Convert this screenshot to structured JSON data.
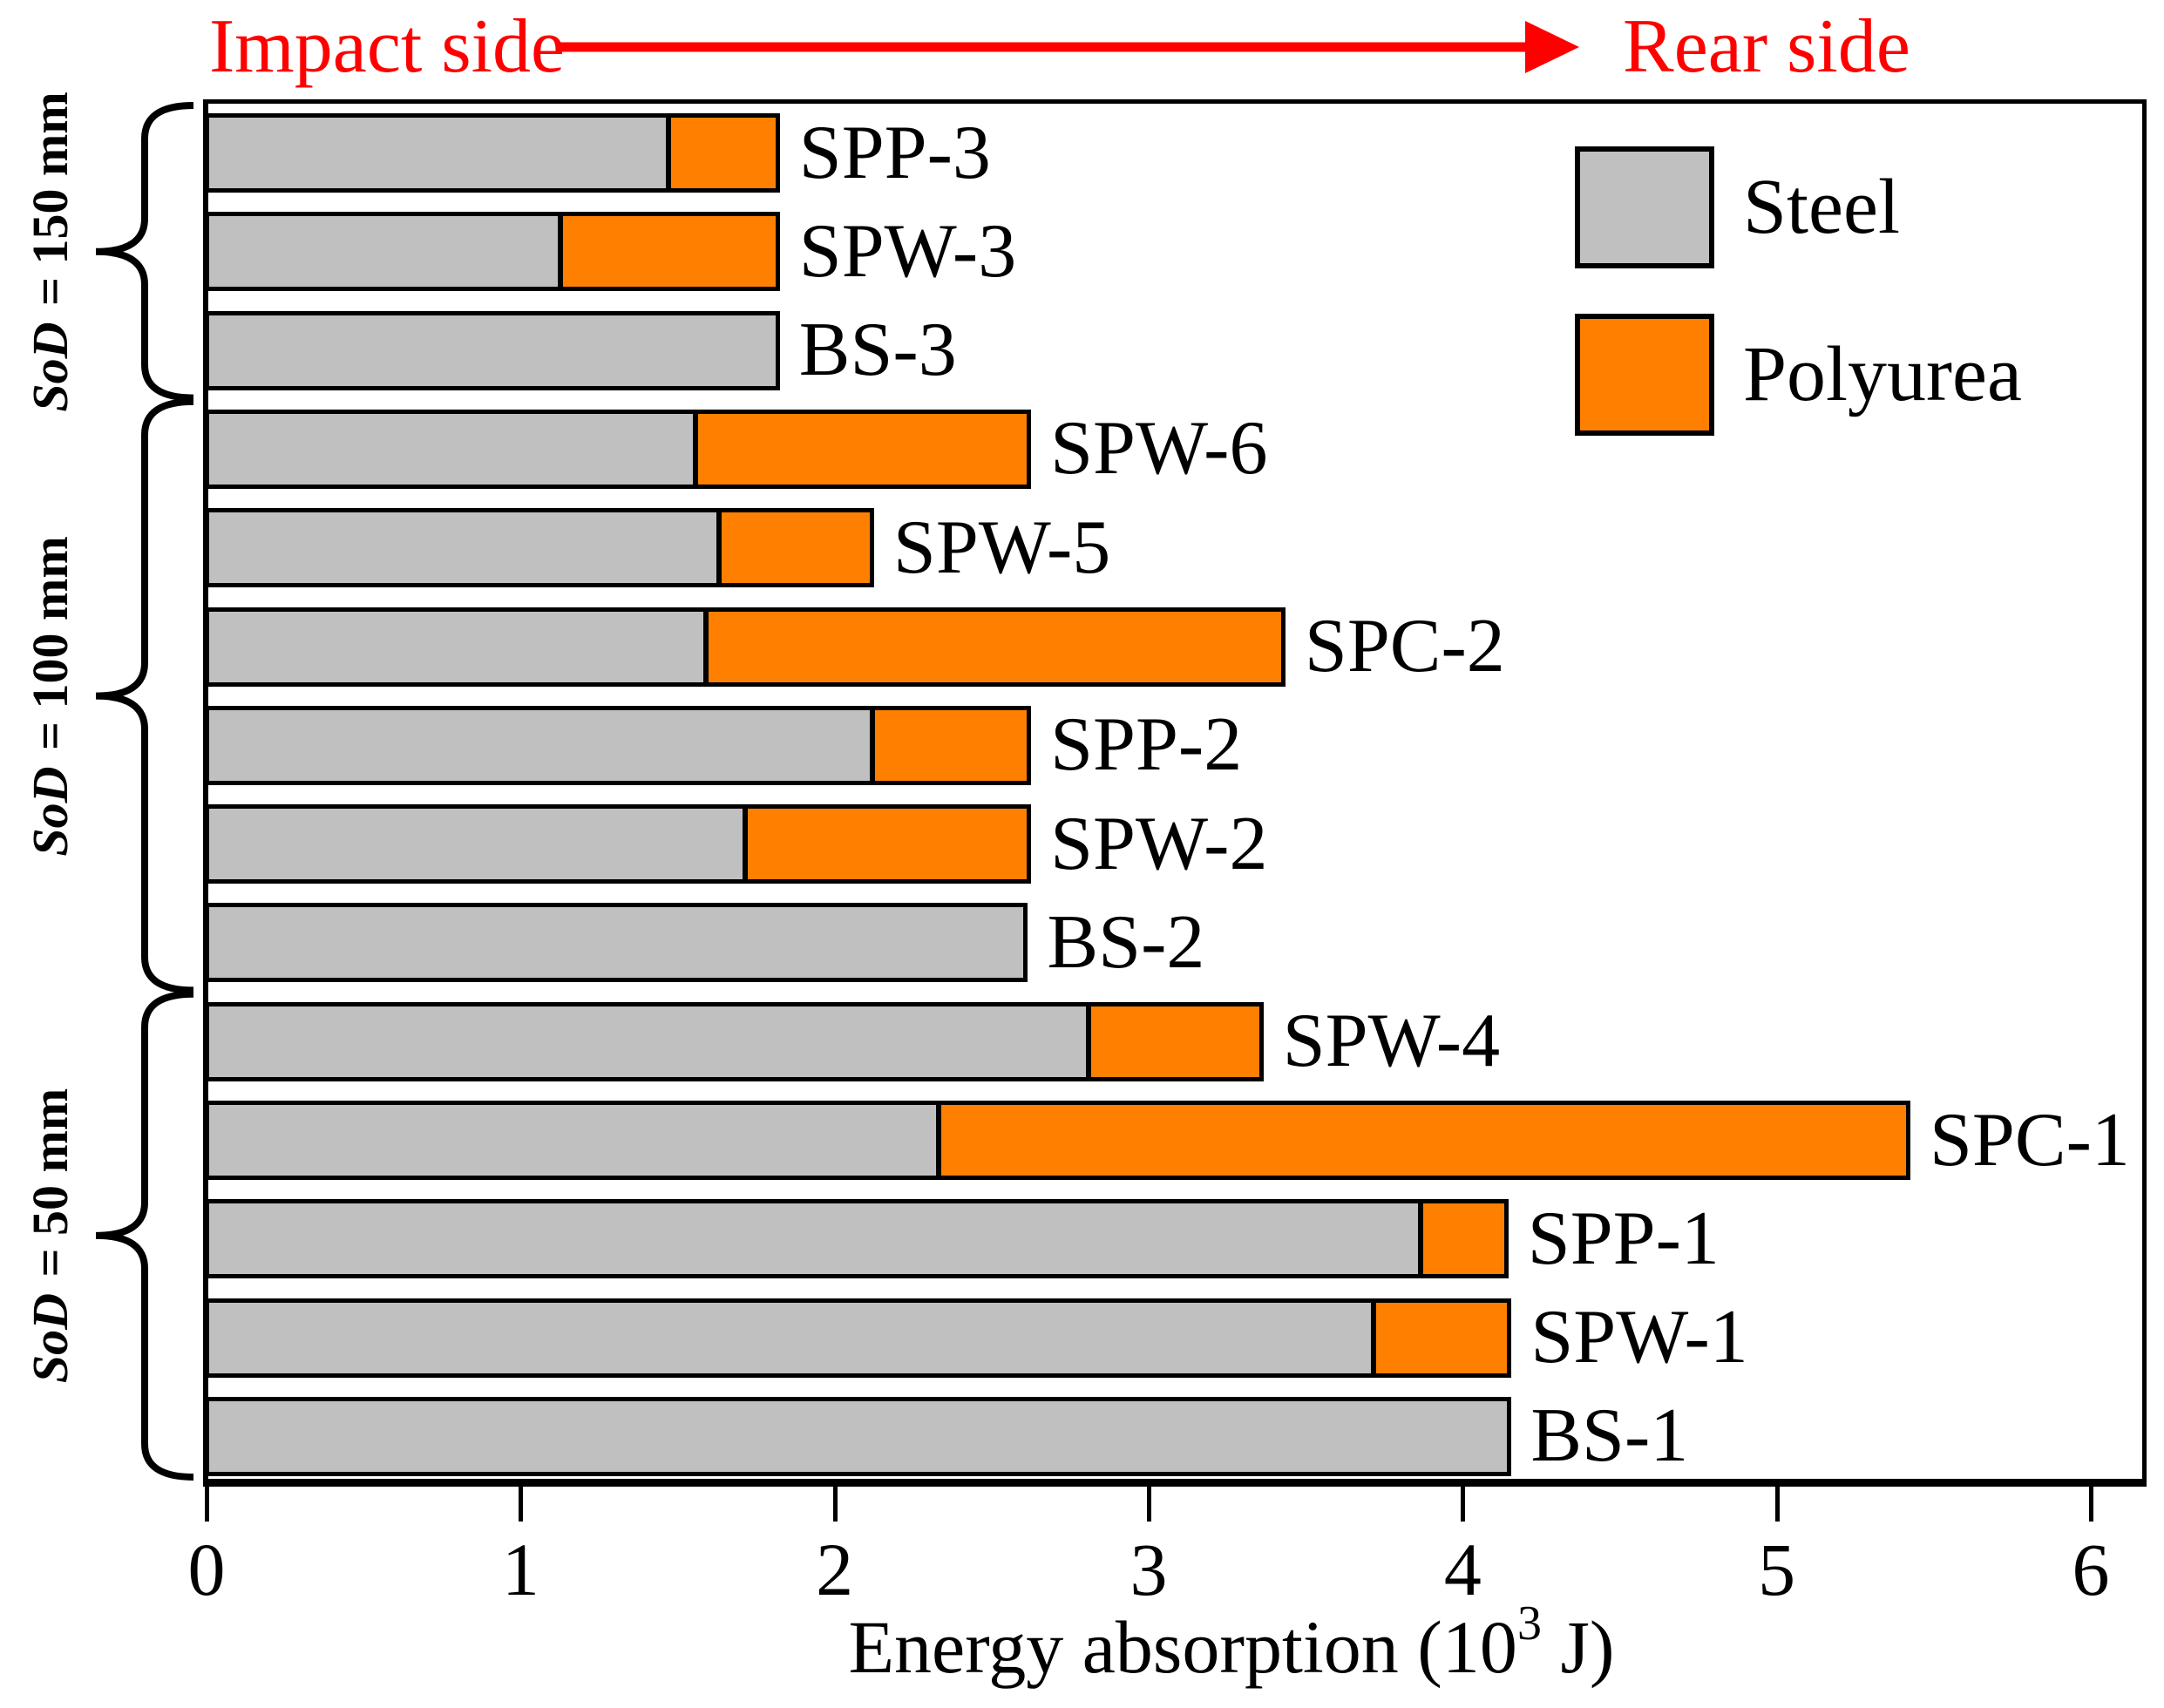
{
  "figure": {
    "annotations": {
      "impact": "Impact side",
      "rear": "Rear side"
    },
    "colors": {
      "steel": "#c0c0c0",
      "polyurea": "#ff8000",
      "annotation_red": "#ff0000",
      "border": "#000000",
      "background": "#ffffff"
    },
    "legend": {
      "items": [
        {
          "label": "Steel",
          "color_key": "steel"
        },
        {
          "label": "Polyurea",
          "color_key": "polyurea"
        }
      ]
    },
    "axis": {
      "title_pre": "Energy absorption (10",
      "title_sup": "3",
      "title_post": " J)"
    }
  },
  "chart_data": {
    "type": "bar",
    "orientation": "horizontal",
    "stacked": true,
    "title": "",
    "xlabel": "Energy absorption (10^3 J)",
    "ylabel": "",
    "xlim": [
      0,
      6.17
    ],
    "xticks": [
      0,
      1,
      2,
      3,
      4,
      5,
      6
    ],
    "grid": false,
    "legend_position": "top-right-inside",
    "categories": [
      "SPP-3",
      "SPW-3",
      "BS-3",
      "SPW-6",
      "SPW-5",
      "SPC-2",
      "SPP-2",
      "SPW-2",
      "BS-2",
      "SPW-4",
      "SPC-1",
      "SPP-1",
      "SPW-1",
      "BS-1"
    ],
    "series": [
      {
        "name": "Steel",
        "color": "#c0c0c0",
        "values": [
          1.48,
          1.13,
          1.82,
          1.56,
          1.64,
          1.59,
          2.13,
          1.72,
          2.61,
          2.82,
          2.33,
          3.88,
          3.73,
          4.15
        ]
      },
      {
        "name": "Polyurea",
        "color": "#ff8000",
        "values": [
          0.34,
          0.69,
          0.0,
          1.06,
          0.48,
          1.84,
          0.49,
          0.9,
          0.0,
          0.54,
          3.09,
          0.26,
          0.42,
          0.0
        ]
      }
    ],
    "totals": [
      1.82,
      1.82,
      1.82,
      2.62,
      2.12,
      3.43,
      2.62,
      2.62,
      2.61,
      3.36,
      5.42,
      4.14,
      4.15,
      4.15
    ],
    "groups": [
      {
        "label": "SoD = 150 mm",
        "label_italic": "SoD",
        "label_rest": " = 150 mm",
        "rows": [
          0,
          2
        ]
      },
      {
        "label": "SoD = 100 mm",
        "label_italic": "SoD",
        "label_rest": " = 100 mm",
        "rows": [
          3,
          8
        ]
      },
      {
        "label": "SoD = 50 mm",
        "label_italic": "SoD",
        "label_rest": " = 50 mm",
        "rows": [
          9,
          13
        ]
      }
    ],
    "direction_annotation": {
      "left_text": "Impact side",
      "right_text": "Rear side",
      "color": "#ff0000"
    }
  }
}
